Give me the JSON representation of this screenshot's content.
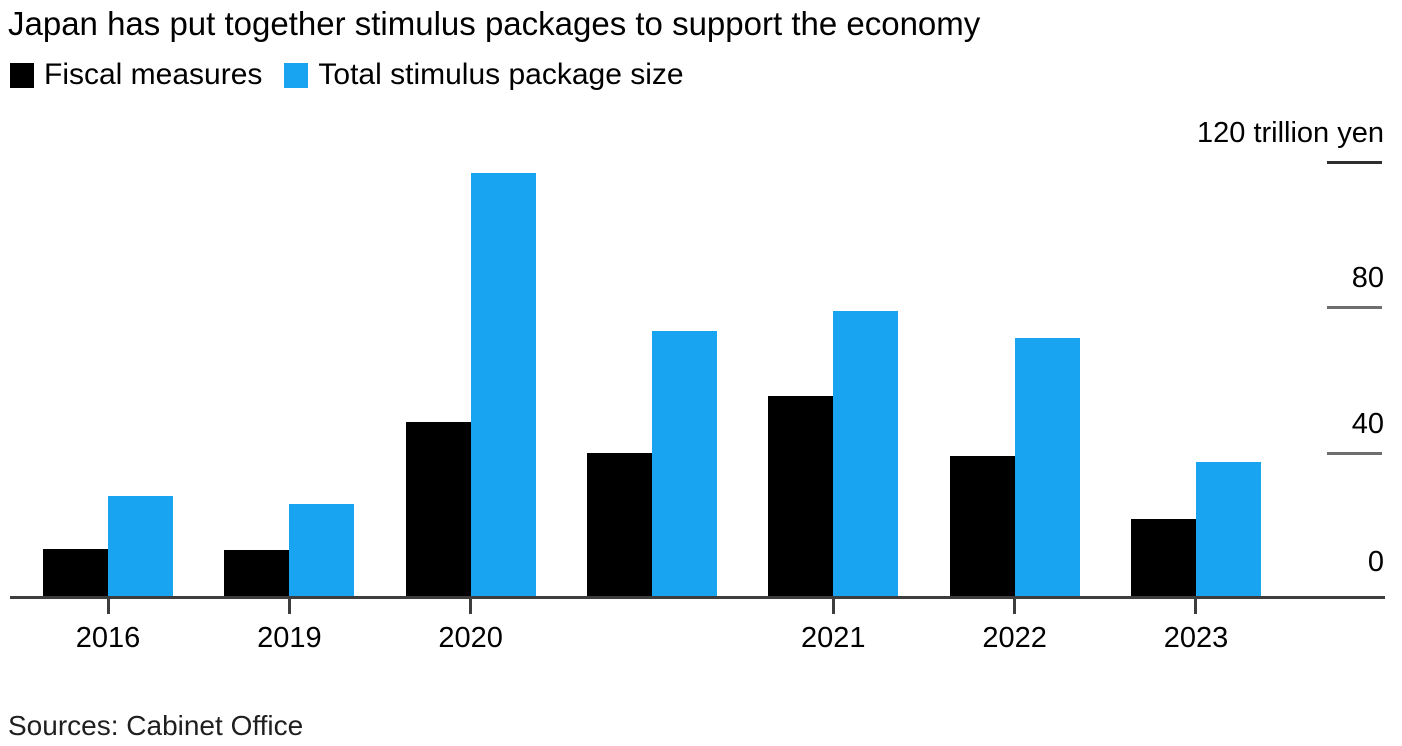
{
  "title": "Japan has put together stimulus packages to support the economy",
  "legend": {
    "items": [
      {
        "label": "Fiscal measures",
        "color": "#000000"
      },
      {
        "label": "Total stimulus package size",
        "color": "#18a4f0"
      }
    ]
  },
  "source": "Sources: Cabinet Office",
  "chart_data": {
    "type": "bar",
    "title": "Japan has put together stimulus packages to support the economy",
    "categories": [
      "2016",
      "2019",
      "2020",
      "",
      "2021",
      "2022",
      "2023"
    ],
    "series": [
      {
        "name": "Fiscal measures",
        "color": "#000000",
        "values": [
          13.5,
          13.2,
          48.4,
          40.0,
          55.7,
          39.0,
          21.8
        ]
      },
      {
        "name": "Total stimulus package size",
        "color": "#18a4f0",
        "values": [
          28.1,
          26.0,
          117.1,
          73.6,
          78.9,
          71.6,
          37.4
        ]
      }
    ],
    "xlabel": "",
    "ylabel": "trillion yen",
    "ylim": [
      0,
      120
    ],
    "y_axis": {
      "tick_values": [
        120,
        80,
        40,
        0
      ],
      "tick_labels": [
        "120 trillion yen",
        "80",
        "40",
        "0"
      ],
      "side": "right"
    },
    "grid": "off",
    "legend_position": "top-left"
  }
}
